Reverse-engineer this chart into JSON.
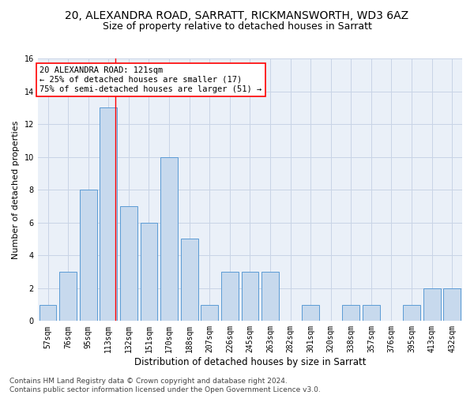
{
  "title1": "20, ALEXANDRA ROAD, SARRATT, RICKMANSWORTH, WD3 6AZ",
  "title2": "Size of property relative to detached houses in Sarratt",
  "xlabel": "Distribution of detached houses by size in Sarratt",
  "ylabel": "Number of detached properties",
  "bar_labels": [
    "57sqm",
    "76sqm",
    "95sqm",
    "113sqm",
    "132sqm",
    "151sqm",
    "170sqm",
    "188sqm",
    "207sqm",
    "226sqm",
    "245sqm",
    "263sqm",
    "282sqm",
    "301sqm",
    "320sqm",
    "338sqm",
    "357sqm",
    "376sqm",
    "395sqm",
    "413sqm",
    "432sqm"
  ],
  "bar_values": [
    1,
    3,
    8,
    13,
    7,
    6,
    10,
    5,
    1,
    3,
    3,
    3,
    0,
    1,
    0,
    1,
    1,
    0,
    1,
    2,
    2
  ],
  "bar_color": "#c7d9ed",
  "bar_edge_color": "#5b9bd5",
  "property_label": "20 ALEXANDRA ROAD: 121sqm",
  "annotation_line1": "← 25% of detached houses are smaller (17)",
  "annotation_line2": "75% of semi-detached houses are larger (51) →",
  "red_line_x": 3.35,
  "ylim": [
    0,
    16
  ],
  "yticks": [
    0,
    2,
    4,
    6,
    8,
    10,
    12,
    14,
    16
  ],
  "footer": "Contains HM Land Registry data © Crown copyright and database right 2024.\nContains public sector information licensed under the Open Government Licence v3.0.",
  "bg_color": "#ffffff",
  "axes_bg_color": "#eaf0f8",
  "grid_color": "#c8d4e6",
  "title1_fontsize": 10,
  "title2_fontsize": 9,
  "xlabel_fontsize": 8.5,
  "ylabel_fontsize": 8,
  "tick_fontsize": 7,
  "annotation_fontsize": 7.5,
  "footer_fontsize": 6.5
}
